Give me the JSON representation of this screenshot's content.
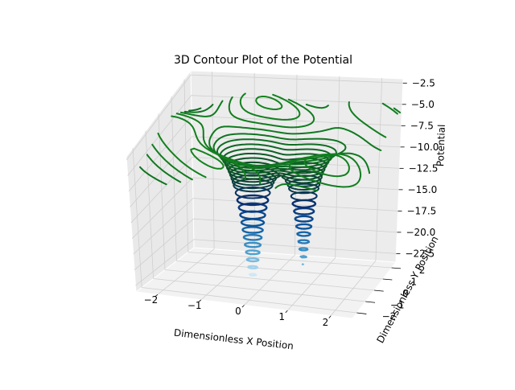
{
  "chart_data": {
    "type": "contour3d",
    "title": "3D Contour Plot of the Potential",
    "xlabel": "Dimensionless X Position",
    "ylabel": "Dimensionless Y Position",
    "zlabel": "Potential",
    "xlim": [
      -2.5,
      2.5
    ],
    "ylim": [
      -2.5,
      2.5
    ],
    "zlim": [
      -23.5,
      -2.0
    ],
    "x_ticks": [
      -2,
      -1,
      0,
      1,
      2
    ],
    "y_ticks": [
      -2,
      -1,
      0,
      1,
      2
    ],
    "z_ticks": [
      -2.5,
      -5.0,
      -7.5,
      -10.0,
      -12.5,
      -15.0,
      -17.5,
      -20.0,
      -22.5
    ],
    "x_tick_labels": [
      "−2",
      "−1",
      "0",
      "1",
      "2"
    ],
    "y_tick_labels": [
      "−2",
      "−1",
      "0",
      "1",
      "2"
    ],
    "z_tick_labels": [
      "−2.5",
      "−5.0",
      "−7.5",
      "−10.0",
      "−12.5",
      "−15.0",
      "−17.5",
      "−20.0",
      "−22.5"
    ],
    "grid": true,
    "colormap": [
      "#e6f4fb",
      "#4aa0cf",
      "#0a58a0",
      "#0a2d6e",
      "#0b4a2a",
      "#0f7a1f",
      "#1a8f1a"
    ],
    "wells": [
      {
        "x": -0.4,
        "y": 0.0,
        "depth": -23.0
      },
      {
        "x": 0.8,
        "y": 0.0,
        "depth": -20.5
      }
    ],
    "contour_levels_z": [
      -23,
      -22,
      -21,
      -20,
      -19,
      -18,
      -17,
      -16,
      -15,
      -14,
      -13,
      -12,
      -11,
      -10.5,
      -10,
      -9.5,
      -9,
      -8.5,
      -8,
      -7.5,
      -7,
      -6.5,
      -6,
      -5.5,
      -5,
      -4.5,
      -4,
      -3.5
    ]
  }
}
